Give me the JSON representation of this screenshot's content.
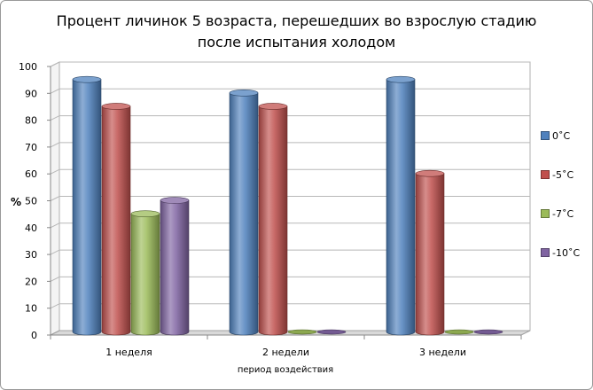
{
  "chart_data": {
    "type": "bar",
    "title_lines": [
      "Процент личинок 5 возраста, перешедших во взрослую стадию",
      "после испытания холодом"
    ],
    "xlabel": "период воздействия",
    "ylabel": "%",
    "ylim": [
      0,
      100
    ],
    "yticks": [
      "0",
      "10",
      "20",
      "30",
      "40",
      "50",
      "60",
      "70",
      "80",
      "90",
      "100"
    ],
    "grid": true,
    "legend_position": "right",
    "categories": [
      "1 неделя",
      "2 недели",
      "3 недели"
    ],
    "series": [
      {
        "name": "0˚C",
        "color": "#4f81bd",
        "values": [
          94,
          89,
          94
        ]
      },
      {
        "name": "-5˚C",
        "color": "#c0504d",
        "values": [
          84,
          84,
          59
        ]
      },
      {
        "name": "-7˚C",
        "color": "#9bbb59",
        "values": [
          44,
          0,
          0
        ]
      },
      {
        "name": "-10˚C",
        "color": "#8064a2",
        "values": [
          49,
          0,
          0
        ]
      }
    ]
  }
}
